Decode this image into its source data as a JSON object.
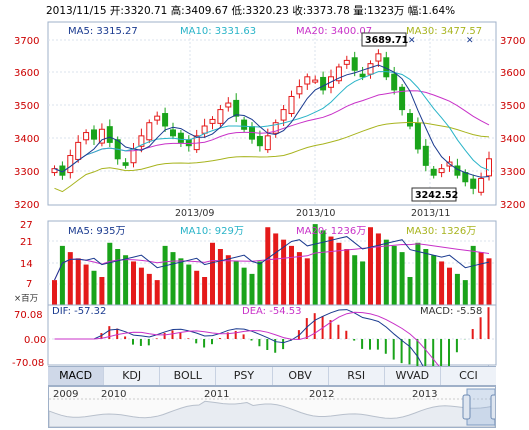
{
  "info": {
    "date": "2013/11/15",
    "open": "开:3320.71",
    "high": "高:3409.67",
    "low": "低:3320.23",
    "close": "收:3373.78",
    "volume": "量:1323万",
    "amplitude": "幅:1.64%"
  },
  "price_legend": {
    "ma5": "MA5: 3315.27",
    "ma10": "MA10: 3331.63",
    "ma20": "MA20: 3400.07",
    "ma30": "MA30: 3477.57"
  },
  "price_axis": [
    "3700",
    "3600",
    "3500",
    "3400",
    "3300",
    "3200"
  ],
  "date_labels": [
    "2013/09",
    "2013/10",
    "2013/11"
  ],
  "callouts": {
    "high": "3689.71",
    "low": "3242.52"
  },
  "volume_legend": {
    "ma5": "MA5: 935万",
    "ma10": "MA10: 929万",
    "ma20": "MA20: 1236万",
    "ma30": "MA30: 1326万"
  },
  "volume_axis": [
    "27",
    "21",
    "14",
    "7",
    "×百万"
  ],
  "macd_legend": {
    "dif": "DIF: -57.32",
    "dea": "DEA: -54.53",
    "macd": "MACD: -5.58"
  },
  "macd_axis": [
    "70.08",
    "0.00",
    "-70.08"
  ],
  "tabs": [
    "MACD",
    "KDJ",
    "BOLL",
    "PSY",
    "OBV",
    "RSI",
    "WVAD",
    "CCI"
  ],
  "active_tab": "MACD",
  "overview_years": [
    "2009",
    "2010",
    "2011",
    "2012",
    "2013"
  ],
  "colors": {
    "up": "#e41a1a",
    "down": "#1aa31a",
    "ma5": "#1a3a8f",
    "ma10": "#2ab4c8",
    "ma20": "#c832c8",
    "ma30": "#a8b41e",
    "axis_text": "#cc0000"
  }
}
